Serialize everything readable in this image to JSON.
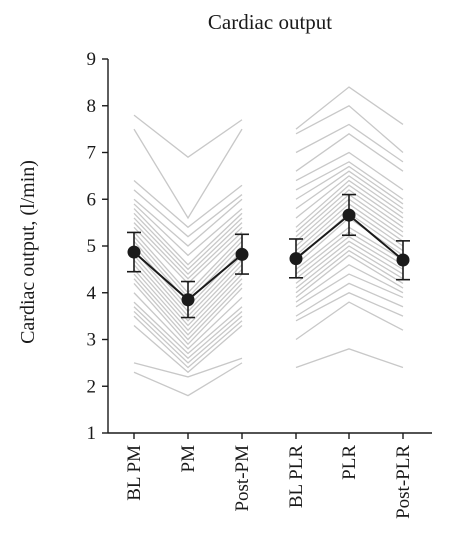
{
  "chart_data": {
    "type": "line",
    "title": "Cardiac output",
    "xlabel": "",
    "ylabel": "Cardiac output, (l/min)",
    "ylim": [
      1,
      9
    ],
    "yticks": [
      1,
      2,
      3,
      4,
      5,
      6,
      7,
      8,
      9
    ],
    "categories": [
      "BL PM",
      "PM",
      "Post-PM",
      "BL PLR",
      "PLR",
      "Post-PLR"
    ],
    "groups": [
      [
        "BL PM",
        "PM",
        "Post-PM"
      ],
      [
        "BL PLR",
        "PLR",
        "Post-PLR"
      ]
    ],
    "mean_series": {
      "means": [
        4.87,
        3.85,
        4.82,
        4.73,
        5.66,
        4.7
      ],
      "err_low": [
        4.45,
        3.47,
        4.4,
        4.32,
        5.23,
        4.28
      ],
      "err_high": [
        5.29,
        4.24,
        5.25,
        5.15,
        6.1,
        5.11
      ],
      "color": "#1a1a1a"
    },
    "individual_color": "#c8c8c8",
    "individuals_pm": [
      [
        7.8,
        6.9,
        7.7
      ],
      [
        7.5,
        5.6,
        7.5
      ],
      [
        6.4,
        5.4,
        6.3
      ],
      [
        6.2,
        5.2,
        6.1
      ],
      [
        6.0,
        5.0,
        6.0
      ],
      [
        5.9,
        4.8,
        5.8
      ],
      [
        5.8,
        4.6,
        5.7
      ],
      [
        5.7,
        4.5,
        5.6
      ],
      [
        5.6,
        4.4,
        5.5
      ],
      [
        5.5,
        4.3,
        5.4
      ],
      [
        5.4,
        4.2,
        5.3
      ],
      [
        5.3,
        4.0,
        5.2
      ],
      [
        5.2,
        3.9,
        5.1
      ],
      [
        5.1,
        3.8,
        5.0
      ],
      [
        5.0,
        3.7,
        4.9
      ],
      [
        4.9,
        3.6,
        4.8
      ],
      [
        4.8,
        3.5,
        4.7
      ],
      [
        4.7,
        3.4,
        4.6
      ],
      [
        4.6,
        3.3,
        4.5
      ],
      [
        4.5,
        3.2,
        4.4
      ],
      [
        4.4,
        3.1,
        4.3
      ],
      [
        4.3,
        3.0,
        4.2
      ],
      [
        4.2,
        2.9,
        4.1
      ],
      [
        4.0,
        2.8,
        3.9
      ],
      [
        3.8,
        2.7,
        3.7
      ],
      [
        3.7,
        2.6,
        3.6
      ],
      [
        3.6,
        2.5,
        3.5
      ],
      [
        3.5,
        2.4,
        3.4
      ],
      [
        3.3,
        2.3,
        3.3
      ],
      [
        2.5,
        2.2,
        2.6
      ],
      [
        2.3,
        1.8,
        2.5
      ]
    ],
    "individuals_plr": [
      [
        7.5,
        8.4,
        7.6
      ],
      [
        7.4,
        8.0,
        7.0
      ],
      [
        7.0,
        7.6,
        6.8
      ],
      [
        6.6,
        7.4,
        6.6
      ],
      [
        6.4,
        7.0,
        6.2
      ],
      [
        6.2,
        6.8,
        6.0
      ],
      [
        6.0,
        6.7,
        5.9
      ],
      [
        5.8,
        6.6,
        5.8
      ],
      [
        5.6,
        6.5,
        5.7
      ],
      [
        5.4,
        6.4,
        5.6
      ],
      [
        5.3,
        6.3,
        5.5
      ],
      [
        5.2,
        6.2,
        5.4
      ],
      [
        5.1,
        6.1,
        5.3
      ],
      [
        5.0,
        6.0,
        5.2
      ],
      [
        4.9,
        5.9,
        5.1
      ],
      [
        4.8,
        5.8,
        5.0
      ],
      [
        4.7,
        5.7,
        4.9
      ],
      [
        4.6,
        5.6,
        4.8
      ],
      [
        4.5,
        5.4,
        4.7
      ],
      [
        4.4,
        5.3,
        4.6
      ],
      [
        4.3,
        5.2,
        4.5
      ],
      [
        4.2,
        5.1,
        4.4
      ],
      [
        4.1,
        5.0,
        4.3
      ],
      [
        4.0,
        4.9,
        4.2
      ],
      [
        3.9,
        4.8,
        4.1
      ],
      [
        3.8,
        4.6,
        4.0
      ],
      [
        3.7,
        4.4,
        3.9
      ],
      [
        3.5,
        4.2,
        3.7
      ],
      [
        3.4,
        4.0,
        3.5
      ],
      [
        3.0,
        3.8,
        3.2
      ],
      [
        2.4,
        2.8,
        2.4
      ]
    ]
  }
}
